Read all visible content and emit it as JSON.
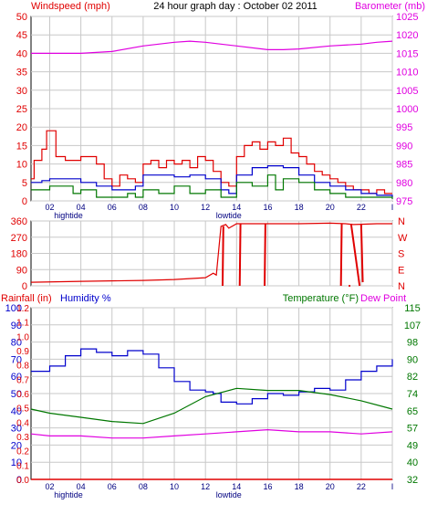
{
  "chart_data": [
    {
      "type": "line",
      "title": "24 hour graph day : October 02 2011",
      "ylabel_left": "Windspeed (mph)",
      "ylabel_right": "Barometer (mb)",
      "ylim_left": [
        0,
        50
      ],
      "ylim_right": [
        975,
        1025
      ],
      "yticks_left": [
        "0",
        "5",
        "10",
        "15",
        "20",
        "25",
        "30",
        "35",
        "40",
        "45",
        "50"
      ],
      "yticks_right": [
        "975",
        "980",
        "985",
        "990",
        "995",
        "1000",
        "1005",
        "1010",
        "1015",
        "1020",
        "1025"
      ],
      "xlim": [
        0.8,
        24
      ],
      "xticks": [
        "02",
        "04",
        "06",
        "08",
        "10",
        "12",
        "14",
        "16",
        "18",
        "20",
        "22",
        "I"
      ],
      "tide_labels": [
        {
          "x": 3.2,
          "text": "hightide"
        },
        {
          "x": 13.5,
          "text": "lowtide"
        }
      ],
      "grid": true,
      "colors": {
        "windspeed": "#e00000",
        "avg_wind": "#0000cc",
        "wind_gust_low": "#007700",
        "barometer": "#e000e0",
        "grid": "#c8c8c8"
      },
      "series": [
        {
          "key": "barometer",
          "axis": "right",
          "color": "#e000e0",
          "points": [
            [
              0.8,
              1015
            ],
            [
              2,
              1015
            ],
            [
              4,
              1015
            ],
            [
              6,
              1015.5
            ],
            [
              8,
              1017
            ],
            [
              10,
              1018
            ],
            [
              11,
              1018.3
            ],
            [
              12,
              1018
            ],
            [
              13,
              1017.5
            ],
            [
              14,
              1017
            ],
            [
              16,
              1016
            ],
            [
              17,
              1016
            ],
            [
              18,
              1016.2
            ],
            [
              20,
              1017
            ],
            [
              22,
              1017.5
            ],
            [
              23,
              1018
            ],
            [
              24,
              1018.3
            ]
          ]
        },
        {
          "key": "windspeed",
          "axis": "left",
          "color": "#e00000",
          "points": [
            [
              0.8,
              6
            ],
            [
              1,
              11
            ],
            [
              1.5,
              14
            ],
            [
              1.8,
              19
            ],
            [
              2.2,
              19
            ],
            [
              2.4,
              12
            ],
            [
              3,
              11
            ],
            [
              4,
              12
            ],
            [
              5,
              10
            ],
            [
              5.5,
              6
            ],
            [
              6,
              4
            ],
            [
              6.5,
              7
            ],
            [
              7,
              6
            ],
            [
              7.5,
              5
            ],
            [
              8,
              10
            ],
            [
              8.5,
              11
            ],
            [
              9,
              9
            ],
            [
              9.5,
              11
            ],
            [
              10,
              10
            ],
            [
              10.5,
              11
            ],
            [
              11,
              9
            ],
            [
              11.5,
              12
            ],
            [
              12,
              11
            ],
            [
              12.5,
              8
            ],
            [
              13,
              5
            ],
            [
              13.5,
              4
            ],
            [
              14,
              12
            ],
            [
              14.5,
              15
            ],
            [
              15,
              16
            ],
            [
              15.5,
              14
            ],
            [
              16,
              16
            ],
            [
              16.5,
              15
            ],
            [
              17,
              17
            ],
            [
              17.5,
              13
            ],
            [
              18,
              12
            ],
            [
              18.5,
              10
            ],
            [
              19,
              8
            ],
            [
              19.5,
              7
            ],
            [
              20,
              6
            ],
            [
              20.5,
              5
            ],
            [
              21,
              4
            ],
            [
              21.5,
              3
            ],
            [
              22,
              3
            ],
            [
              22.5,
              2
            ],
            [
              23,
              3
            ],
            [
              23.5,
              2
            ],
            [
              24,
              2
            ]
          ]
        },
        {
          "key": "avg_wind",
          "axis": "left",
          "color": "#0000cc",
          "points": [
            [
              0.8,
              5
            ],
            [
              1.5,
              5.5
            ],
            [
              2,
              6
            ],
            [
              3,
              6
            ],
            [
              4,
              5
            ],
            [
              5,
              4
            ],
            [
              6,
              3
            ],
            [
              7,
              3
            ],
            [
              7.5,
              4
            ],
            [
              8,
              7
            ],
            [
              9,
              7
            ],
            [
              10,
              6.5
            ],
            [
              11,
              7
            ],
            [
              12,
              6
            ],
            [
              13,
              3
            ],
            [
              13.5,
              2
            ],
            [
              14,
              7
            ],
            [
              15,
              9
            ],
            [
              16,
              9.5
            ],
            [
              17,
              9
            ],
            [
              18,
              7
            ],
            [
              19,
              5
            ],
            [
              20,
              4
            ],
            [
              21,
              3
            ],
            [
              22,
              2
            ],
            [
              23,
              1.5
            ],
            [
              24,
              1
            ]
          ]
        },
        {
          "key": "wind_gust_low",
          "axis": "left",
          "color": "#007700",
          "points": [
            [
              0.8,
              3
            ],
            [
              2,
              4
            ],
            [
              3,
              4
            ],
            [
              3.5,
              2
            ],
            [
              4,
              3
            ],
            [
              5,
              1
            ],
            [
              6,
              1
            ],
            [
              7,
              2
            ],
            [
              7.5,
              1
            ],
            [
              8,
              3
            ],
            [
              9,
              2
            ],
            [
              10,
              4
            ],
            [
              11,
              2
            ],
            [
              12,
              3
            ],
            [
              13,
              1
            ],
            [
              14,
              5
            ],
            [
              15,
              4
            ],
            [
              16,
              7
            ],
            [
              16.5,
              3
            ],
            [
              17,
              6
            ],
            [
              18,
              5
            ],
            [
              19,
              3
            ],
            [
              20,
              2
            ],
            [
              21,
              1
            ],
            [
              22,
              1
            ],
            [
              24,
              0.5
            ]
          ]
        }
      ]
    },
    {
      "type": "line",
      "ylabel_left": "",
      "ylim": [
        0,
        360
      ],
      "yticks_left": [
        "0",
        "90",
        "180",
        "270",
        "360"
      ],
      "yticks_right": [
        "N",
        "E",
        "S",
        "W",
        "N"
      ],
      "xlim": [
        0.8,
        24
      ],
      "grid": true,
      "series": [
        {
          "key": "wind_direction",
          "color": "#e00000",
          "points": [
            [
              0.8,
              20
            ],
            [
              4,
              25
            ],
            [
              8,
              30
            ],
            [
              10,
              35
            ],
            [
              11,
              40
            ],
            [
              12,
              45
            ],
            [
              12.5,
              70
            ],
            [
              12.7,
              60
            ],
            [
              13,
              330
            ],
            [
              13.3,
              340
            ],
            [
              13.5,
              320
            ],
            [
              14,
              345
            ],
            [
              16,
              345
            ],
            [
              18,
              345
            ],
            [
              20,
              348
            ],
            [
              21,
              345
            ],
            [
              21.5,
              340
            ],
            [
              22,
              342
            ],
            [
              23,
              345
            ],
            [
              24,
              345
            ]
          ]
        },
        {
          "key": "wind_direction_spikes",
          "color": "#e00000",
          "points": [
            [
              13.1,
              0
            ],
            [
              13.15,
              330
            ],
            [
              14.2,
              0
            ],
            [
              14.25,
              345
            ],
            [
              15.8,
              0
            ],
            [
              15.85,
              345
            ],
            [
              20.7,
              0
            ],
            [
              20.75,
              345
            ],
            [
              21.2,
              0
            ],
            [
              21.3,
              0
            ],
            [
              21.35,
              345
            ],
            [
              21.9,
              0
            ],
            [
              22,
              340
            ],
            [
              22.1,
              20
            ],
            [
              22.2,
              20
            ]
          ]
        }
      ]
    },
    {
      "type": "line",
      "label_rainfall": "Rainfall (in)",
      "label_humidity": "Humidity %",
      "label_temp": "Temperature (°F)",
      "label_dewpoint": "Dew Point",
      "ylim_humidity": [
        0,
        100
      ],
      "ylim_rain": [
        0,
        1.2
      ],
      "ylim_temp": [
        32,
        115
      ],
      "yticks_humidity": [
        "0",
        "10",
        "20",
        "30",
        "40",
        "50",
        "60",
        "70",
        "80",
        "90",
        "100"
      ],
      "yticks_rain": [
        "0.0",
        "0.1",
        "0.2",
        "0.3",
        "0.4",
        "0.5",
        "0.6",
        "0.7",
        "0.8",
        "0.9",
        "1.0",
        "1.1",
        "1.2"
      ],
      "yticks_temp": [
        "32",
        "40",
        "49",
        "57",
        "65",
        "74",
        "82",
        "90",
        "98",
        "107",
        "115"
      ],
      "xlim": [
        0.8,
        24
      ],
      "xticks": [
        "02",
        "04",
        "06",
        "08",
        "10",
        "12",
        "14",
        "16",
        "18",
        "20",
        "22",
        "I"
      ],
      "tide_labels": [
        {
          "x": 3.2,
          "text": "hightide"
        },
        {
          "x": 13.5,
          "text": "lowtide"
        }
      ],
      "grid": true,
      "series": [
        {
          "key": "humidity",
          "axis": "humidity",
          "color": "#0000cc",
          "points": [
            [
              0.8,
              63
            ],
            [
              1.5,
              63
            ],
            [
              2,
              66
            ],
            [
              3,
              72
            ],
            [
              4,
              76
            ],
            [
              5,
              74
            ],
            [
              6,
              72
            ],
            [
              7,
              75
            ],
            [
              8,
              73
            ],
            [
              9,
              65
            ],
            [
              10,
              57
            ],
            [
              11,
              52
            ],
            [
              12,
              51
            ],
            [
              12.5,
              50
            ],
            [
              13,
              45
            ],
            [
              14,
              44
            ],
            [
              15,
              47
            ],
            [
              16,
              50
            ],
            [
              17,
              49
            ],
            [
              18,
              51
            ],
            [
              19,
              53
            ],
            [
              20,
              52
            ],
            [
              21,
              58
            ],
            [
              22,
              63
            ],
            [
              23,
              66
            ],
            [
              24,
              70
            ]
          ]
        },
        {
          "key": "temperature",
          "axis": "temp",
          "color": "#007700",
          "points": [
            [
              0.8,
              66
            ],
            [
              2,
              64
            ],
            [
              4,
              62
            ],
            [
              6,
              60
            ],
            [
              8,
              59
            ],
            [
              10,
              64
            ],
            [
              12,
              72
            ],
            [
              14,
              76
            ],
            [
              16,
              75
            ],
            [
              18,
              75
            ],
            [
              20,
              73
            ],
            [
              22,
              70
            ],
            [
              24,
              66
            ]
          ]
        },
        {
          "key": "dew_point",
          "axis": "temp",
          "color": "#e000e0",
          "points": [
            [
              0.8,
              54
            ],
            [
              2,
              53
            ],
            [
              4,
              53
            ],
            [
              6,
              52
            ],
            [
              8,
              52
            ],
            [
              10,
              53
            ],
            [
              12,
              54
            ],
            [
              14,
              55
            ],
            [
              16,
              56
            ],
            [
              18,
              55
            ],
            [
              20,
              55
            ],
            [
              22,
              54
            ],
            [
              24,
              55
            ]
          ]
        },
        {
          "key": "rainfall",
          "axis": "rain",
          "color": "#e00000",
          "points": [
            [
              0.8,
              0
            ],
            [
              24,
              0
            ]
          ]
        }
      ]
    }
  ]
}
